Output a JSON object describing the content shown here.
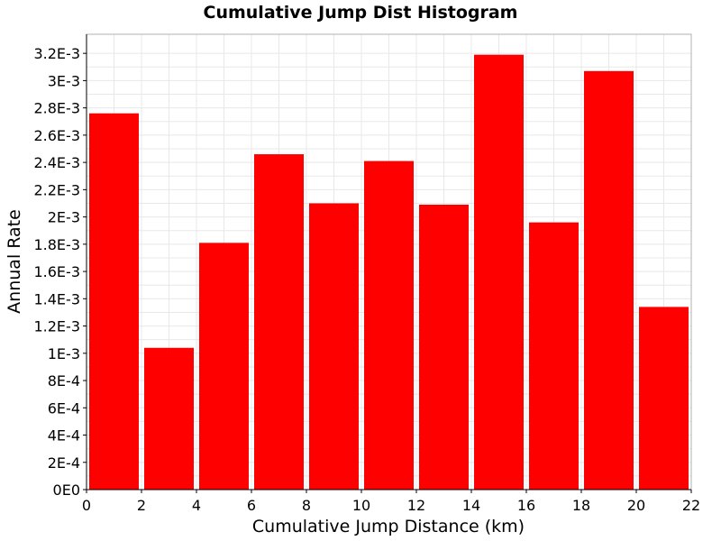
{
  "chart_data": {
    "type": "bar",
    "title": "Cumulative Jump Dist Histogram",
    "xlabel": "Cumulative Jump Distance (km)",
    "ylabel": "Annual Rate",
    "xlim": [
      0,
      22
    ],
    "ylim": [
      0,
      0.00334
    ],
    "bar_width": 2,
    "bars": [
      {
        "x": 1,
        "value": 0.00276
      },
      {
        "x": 3,
        "value": 0.00104
      },
      {
        "x": 5,
        "value": 0.00181
      },
      {
        "x": 7,
        "value": 0.00246
      },
      {
        "x": 9,
        "value": 0.0021
      },
      {
        "x": 11,
        "value": 0.00241
      },
      {
        "x": 13,
        "value": 0.00209
      },
      {
        "x": 15,
        "value": 0.00319
      },
      {
        "x": 17,
        "value": 0.00196
      },
      {
        "x": 19,
        "value": 0.00307
      },
      {
        "x": 21,
        "value": 0.00134
      }
    ],
    "x_ticks": [
      {
        "value": 0,
        "label": "0"
      },
      {
        "value": 2,
        "label": "2"
      },
      {
        "value": 4,
        "label": "4"
      },
      {
        "value": 6,
        "label": "6"
      },
      {
        "value": 8,
        "label": "8"
      },
      {
        "value": 10,
        "label": "10"
      },
      {
        "value": 12,
        "label": "12"
      },
      {
        "value": 14,
        "label": "14"
      },
      {
        "value": 16,
        "label": "16"
      },
      {
        "value": 18,
        "label": "18"
      },
      {
        "value": 20,
        "label": "20"
      },
      {
        "value": 22,
        "label": "22"
      }
    ],
    "y_ticks": [
      {
        "value": 0,
        "label": "0E0"
      },
      {
        "value": 0.0002,
        "label": "2E-4"
      },
      {
        "value": 0.0004,
        "label": "4E-4"
      },
      {
        "value": 0.0006,
        "label": "6E-4"
      },
      {
        "value": 0.0008,
        "label": "8E-4"
      },
      {
        "value": 0.001,
        "label": "1E-3"
      },
      {
        "value": 0.0012,
        "label": "1.2E-3"
      },
      {
        "value": 0.0014,
        "label": "1.4E-3"
      },
      {
        "value": 0.0016,
        "label": "1.6E-3"
      },
      {
        "value": 0.0018,
        "label": "1.8E-3"
      },
      {
        "value": 0.002,
        "label": "2E-3"
      },
      {
        "value": 0.0022,
        "label": "2.2E-3"
      },
      {
        "value": 0.0024,
        "label": "2.4E-3"
      },
      {
        "value": 0.0026,
        "label": "2.6E-3"
      },
      {
        "value": 0.0028,
        "label": "2.8E-3"
      },
      {
        "value": 0.003,
        "label": "3E-3"
      },
      {
        "value": 0.0032,
        "label": "3.2E-3"
      }
    ],
    "grid": true,
    "bar_color": "#ff0000",
    "grid_color": "#e8e8e8"
  }
}
